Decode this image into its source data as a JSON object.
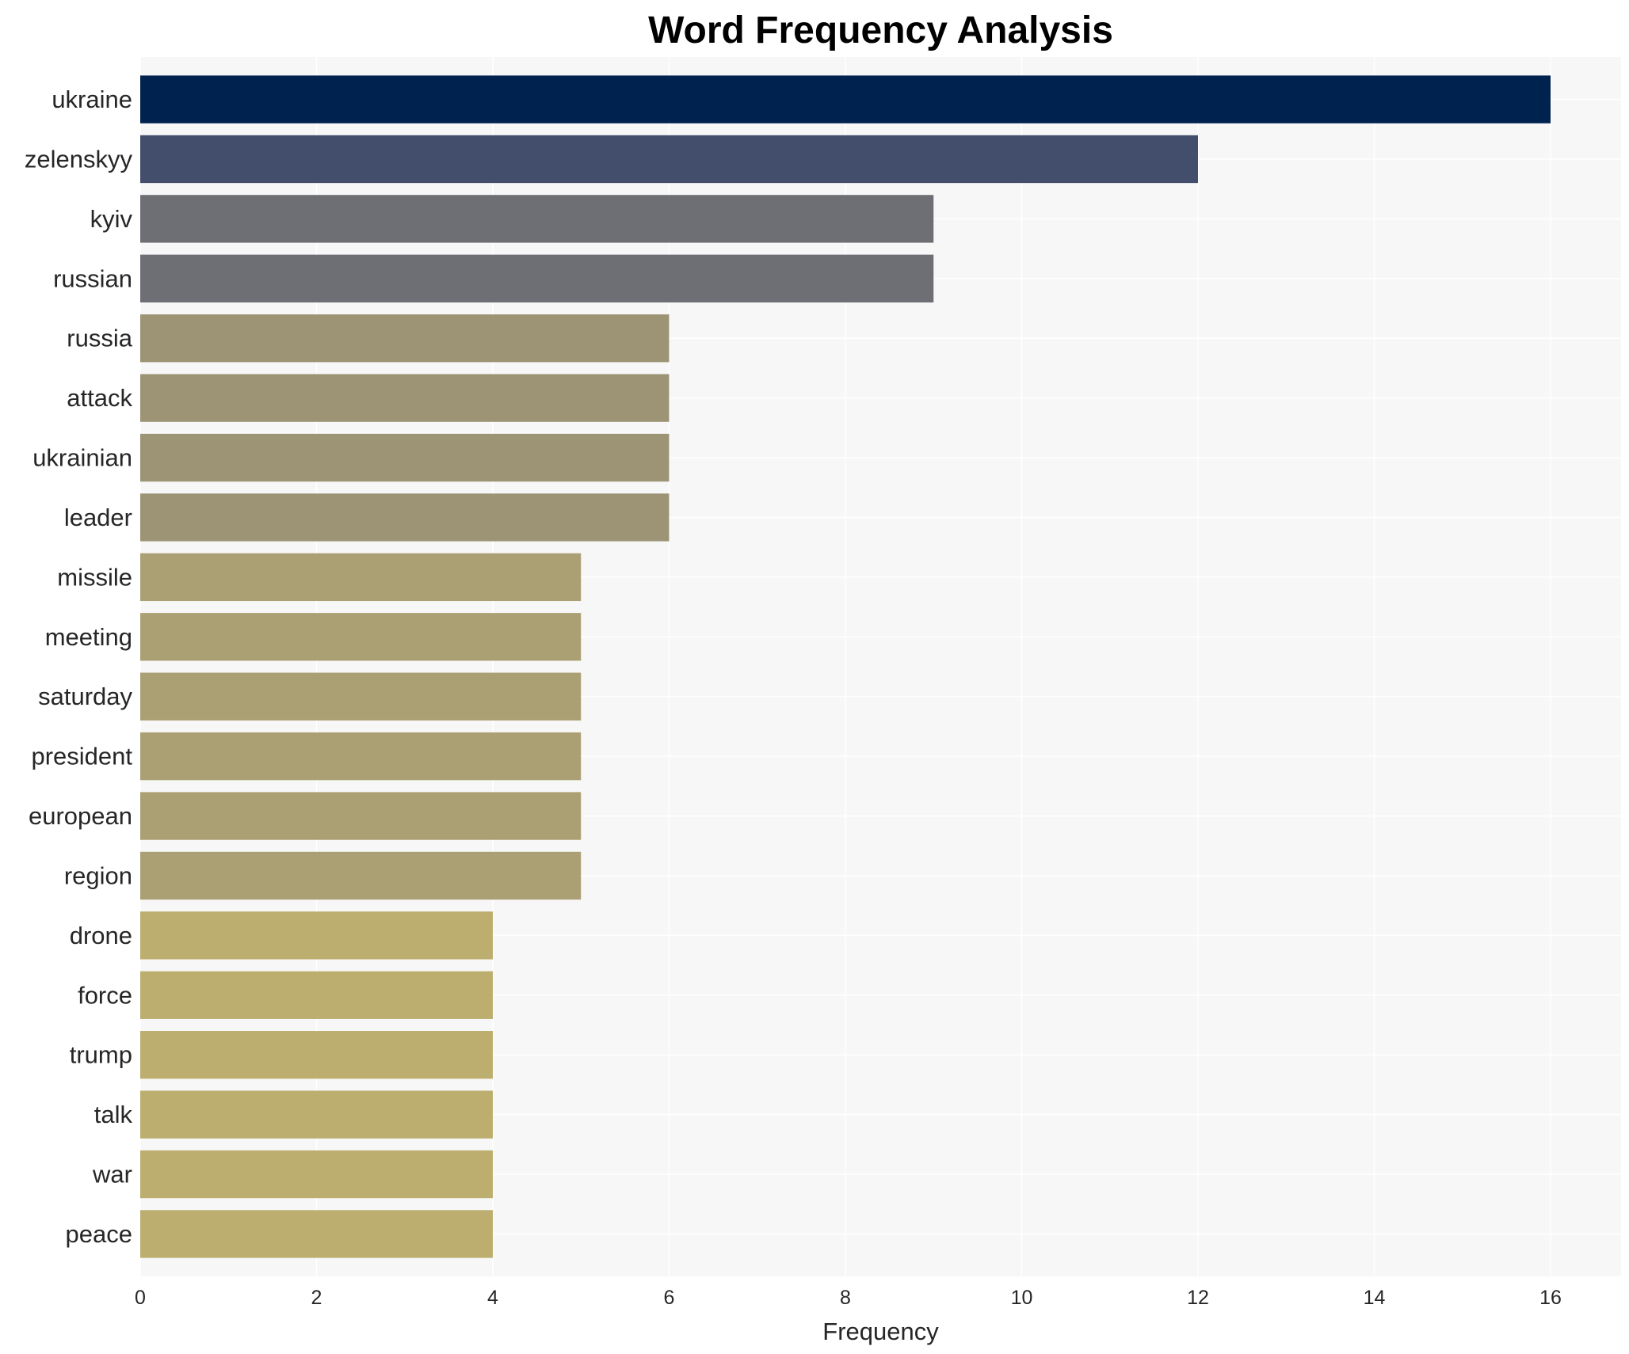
{
  "chart_data": {
    "type": "bar",
    "orientation": "horizontal",
    "title": "Word Frequency Analysis",
    "xlabel": "Frequency",
    "ylabel": "",
    "xlim": [
      0,
      16.8
    ],
    "xticks": [
      0,
      2,
      4,
      6,
      8,
      10,
      12,
      14,
      16
    ],
    "grid": true,
    "categories": [
      "ukraine",
      "zelenskyy",
      "kyiv",
      "russian",
      "russia",
      "attack",
      "ukrainian",
      "leader",
      "missile",
      "meeting",
      "saturday",
      "president",
      "european",
      "region",
      "drone",
      "force",
      "trump",
      "talk",
      "war",
      "peace"
    ],
    "values": [
      16,
      12,
      9,
      9,
      6,
      6,
      6,
      6,
      5,
      5,
      5,
      5,
      5,
      5,
      4,
      4,
      4,
      4,
      4,
      4
    ],
    "colors": [
      "#00224e",
      "#434e6c",
      "#6e6f75",
      "#6e6f75",
      "#9c9475",
      "#9c9475",
      "#9c9475",
      "#9c9475",
      "#aba074",
      "#aba074",
      "#aba074",
      "#aba074",
      "#aba074",
      "#aba074",
      "#bcae6e",
      "#bcae6e",
      "#bcae6e",
      "#bcae6e",
      "#bcae6e",
      "#bcae6e"
    ],
    "background": "#f7f7f7"
  }
}
